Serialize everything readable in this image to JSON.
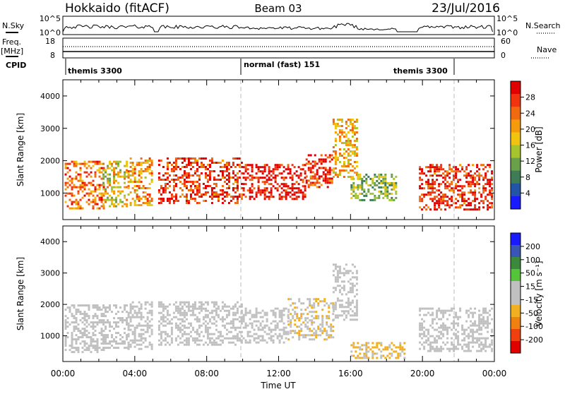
{
  "header": {
    "station_title": "Hokkaido (fitACF)",
    "beam_title": "Beam 03",
    "date_title": "23/Jul/2016"
  },
  "top_panels": {
    "nsky_label": "N.Sky",
    "nsearch_label": "N.Search",
    "nsky_ticks": [
      "10^5",
      "10^0"
    ],
    "nsearch_ticks": [
      "10^5",
      "10^0"
    ],
    "freq_label": "Freq.",
    "freq_unit": "[MHz]",
    "freq_ticks": [
      "18",
      "8"
    ],
    "nave_label": "Nave",
    "nave_ticks": [
      "60",
      "0"
    ],
    "cpid_label": "CPID",
    "cpid_segments": [
      "themis 3300",
      "normal (fast) 151",
      "themis 3300"
    ]
  },
  "colors": {
    "power_scale": [
      "#1a1aff",
      "#2255a8",
      "#3e7c55",
      "#6aa04a",
      "#a6c42e",
      "#f0c410",
      "#f59a0c",
      "#f06a10",
      "#f03410",
      "#e00000"
    ],
    "velocity_scale": [
      "#1a1aff",
      "#3a56b4",
      "#3b8a3b",
      "#55c43a",
      "#c0c0c0",
      "#c0c0c0",
      "#f0b020",
      "#f08010",
      "#f04010",
      "#e00000"
    ],
    "ground_scatter": "#c0c0c0"
  },
  "chart_data": [
    {
      "type": "heatmap",
      "panel": "power",
      "xlabel": "Time UT",
      "ylabel": "Slant Range [km]",
      "ylim": [
        180,
        4500
      ],
      "xlim": [
        "00:00",
        "24:00"
      ],
      "x_ticks": [
        "00:00",
        "04:00",
        "08:00",
        "12:00",
        "16:00",
        "20:00",
        "00:00"
      ],
      "y_ticks": [
        "1000",
        "2000",
        "3000",
        "4000"
      ],
      "colorbar_label": "Power [dB]",
      "colorbar_ticks": [
        "28",
        "24",
        "20",
        "16",
        "12",
        "8",
        "4"
      ],
      "colorbar_range": [
        0,
        30
      ],
      "cpid_changes": [
        "10:00",
        "22:00"
      ],
      "scatter_regions": [
        {
          "t0": 0.1,
          "t1": 2.3,
          "r0": 500,
          "r1": 2000,
          "power": 22
        },
        {
          "t0": 2.2,
          "t1": 3.6,
          "r0": 600,
          "r1": 2000,
          "power": 16
        },
        {
          "t0": 3.6,
          "t1": 5.0,
          "r0": 600,
          "r1": 2100,
          "power": 20
        },
        {
          "t0": 5.3,
          "t1": 10.0,
          "r0": 700,
          "r1": 2100,
          "power": 26
        },
        {
          "t0": 10.0,
          "t1": 13.5,
          "r0": 800,
          "r1": 1900,
          "power": 28
        },
        {
          "t0": 13.5,
          "t1": 15.0,
          "r0": 1200,
          "r1": 2200,
          "power": 26
        },
        {
          "t0": 15.0,
          "t1": 16.3,
          "r0": 1500,
          "r1": 3300,
          "power": 18
        },
        {
          "t0": 16.0,
          "t1": 18.5,
          "r0": 800,
          "r1": 1600,
          "power": 12
        },
        {
          "t0": 19.8,
          "t1": 23.9,
          "r0": 500,
          "r1": 1900,
          "power": 26
        }
      ]
    },
    {
      "type": "heatmap",
      "panel": "velocity",
      "xlabel": "Time UT",
      "ylabel": "Slant Range [km]",
      "ylim": [
        180,
        4500
      ],
      "xlim": [
        "00:00",
        "24:00"
      ],
      "x_ticks": [
        "00:00",
        "04:00",
        "08:00",
        "12:00",
        "16:00",
        "20:00",
        "00:00"
      ],
      "y_ticks": [
        "1000",
        "2000",
        "3000",
        "4000"
      ],
      "colorbar_label": "Velocity [m s⁻¹]",
      "colorbar_ticks": [
        "200",
        "100",
        "50",
        "15",
        "-15",
        "-50",
        "-100",
        "-200"
      ],
      "colorbar_range": [
        -250,
        250
      ],
      "scatter_regions": [
        {
          "t0": 0.1,
          "t1": 2.3,
          "r0": 500,
          "r1": 2000,
          "velocity": 0
        },
        {
          "t0": 2.2,
          "t1": 3.6,
          "r0": 600,
          "r1": 2000,
          "velocity": 0
        },
        {
          "t0": 3.6,
          "t1": 5.0,
          "r0": 600,
          "r1": 2100,
          "velocity": 0
        },
        {
          "t0": 5.3,
          "t1": 10.0,
          "r0": 700,
          "r1": 2100,
          "velocity": 0
        },
        {
          "t0": 10.0,
          "t1": 12.5,
          "r0": 800,
          "r1": 1900,
          "velocity": 0
        },
        {
          "t0": 12.5,
          "t1": 15.0,
          "r0": 900,
          "r1": 2200,
          "velocity": -40
        },
        {
          "t0": 15.0,
          "t1": 16.3,
          "r0": 1500,
          "r1": 3300,
          "velocity": 0
        },
        {
          "t0": 16.0,
          "t1": 19.0,
          "r0": 300,
          "r1": 800,
          "velocity": -60
        },
        {
          "t0": 19.8,
          "t1": 23.9,
          "r0": 500,
          "r1": 1900,
          "velocity": 0
        }
      ]
    }
  ]
}
